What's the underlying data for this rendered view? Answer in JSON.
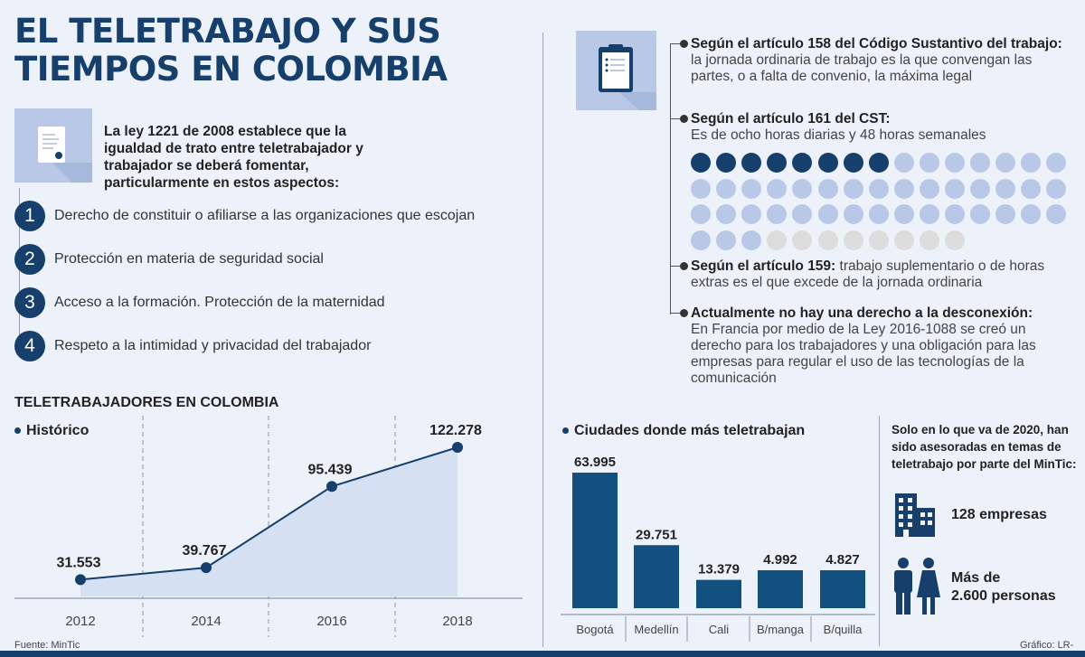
{
  "title": "EL TELETRABAJO Y SUS TIEMPOS EN COLOMBIA",
  "intro": "La ley 1221 de 2008 establece que la igualdad de trato entre teletrabajador y trabajador se deberá fomentar, particularmente en estos aspectos:",
  "aspects": [
    {
      "num": "1",
      "text": "Derecho de constituir o afiliarse a las organizaciones que escojan"
    },
    {
      "num": "2",
      "text": "Protección en materia de seguridad social"
    },
    {
      "num": "3",
      "text": "Acceso a la formación. Protección de la maternidad"
    },
    {
      "num": "4",
      "text": "Respeto a la intimidad y privacidad del trabajador"
    }
  ],
  "articles": [
    {
      "bold": "Según el artículo 158 del Código Sustantivo del trabajo:",
      "text": " la jornada ordinaria de trabajo es la que convengan las partes, o a falta de convenio, la máxima legal"
    },
    {
      "bold": "Según el artículo 161 del CST:",
      "text": " Es de ocho horas diarias y 48 horas semanales"
    },
    {
      "bold": "Según el artículo 159:",
      "text": " trabajo suplementario o de horas extras es el que excede de la jornada ordinaria"
    },
    {
      "bold": "Actualmente no hay una derecho a la desconexión:",
      "text": " En Francia por medio de la Ley 2016-1088 se creó un derecho para los trabajadores y una obligación para las empresas para regular el uso de las tecnologías de la comunicación"
    }
  ],
  "hours_grid": {
    "full": 8,
    "mid": 40,
    "empty": 8,
    "columns": 8,
    "colors": {
      "full": "#163f6b",
      "mid": "#b8c8e6",
      "empty": "#dcdcdc"
    }
  },
  "historic": {
    "heading": "TELETRABAJADORES EN COLOMBIA",
    "subheading": "Histórico",
    "source": "Fuente: MinTic"
  },
  "cities": {
    "heading": "Ciudades donde más teletrabajan"
  },
  "asesoradas": {
    "text": "Solo en lo que va de 2020, han sido asesoradas en temas de teletrabajo por parte del MinTic:",
    "empresas": "128 empresas",
    "personas_line1": "Más de",
    "personas_line2": "2.600 personas"
  },
  "credit": "Gráfico: LR-AL",
  "chart_data": [
    {
      "type": "area",
      "title": "Histórico",
      "x": [
        "2012",
        "2014",
        "2016",
        "2018"
      ],
      "values": [
        31553,
        39767,
        95439,
        122278
      ],
      "labels": [
        "31.553",
        "39.767",
        "95.439",
        "122.278"
      ],
      "ylim": [
        0,
        140000
      ],
      "color": "#163f6b",
      "fill": "#d6e0f3"
    },
    {
      "type": "bar",
      "title": "Ciudades donde más teletrabajan",
      "categories": [
        "Bogotá",
        "Medellín",
        "Cali",
        "B/manga",
        "B/quilla"
      ],
      "values": [
        63995,
        29751,
        13379,
        4992,
        4827
      ],
      "labels": [
        "63.995",
        "29.751",
        "13.379",
        "4.992",
        "4.827"
      ],
      "color": "#11507f"
    }
  ]
}
